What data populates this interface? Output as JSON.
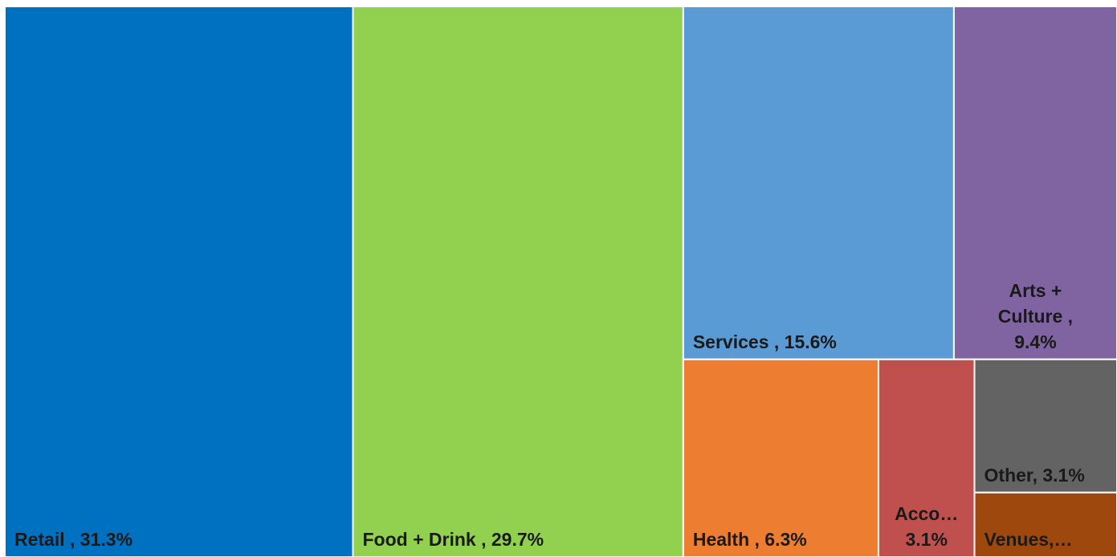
{
  "chart_data": {
    "type": "treemap",
    "categories": [
      "Retail",
      "Food + Drink",
      "Services",
      "Arts + Culture",
      "Health",
      "Acco…",
      "Other",
      "Venues,…"
    ],
    "values": [
      31.3,
      29.7,
      15.6,
      9.4,
      6.3,
      3.1,
      3.1,
      1.5
    ],
    "value_labels": [
      [
        "Retail , 31.3%"
      ],
      [
        "Food + Drink , 29.7%"
      ],
      [
        "Services , 15.6%"
      ],
      [
        "Arts +",
        "Culture ,",
        "9.4%"
      ],
      [
        "Health , 6.3%"
      ],
      [
        "Acco…",
        "3.1%"
      ],
      [
        "Other, 3.1%"
      ],
      [
        "Venues,…"
      ]
    ],
    "colors": [
      "#0070c0",
      "#92d050",
      "#5b9bd5",
      "#8064a2",
      "#ed7d31",
      "#c0504d",
      "#636363",
      "#9e480e"
    ]
  }
}
